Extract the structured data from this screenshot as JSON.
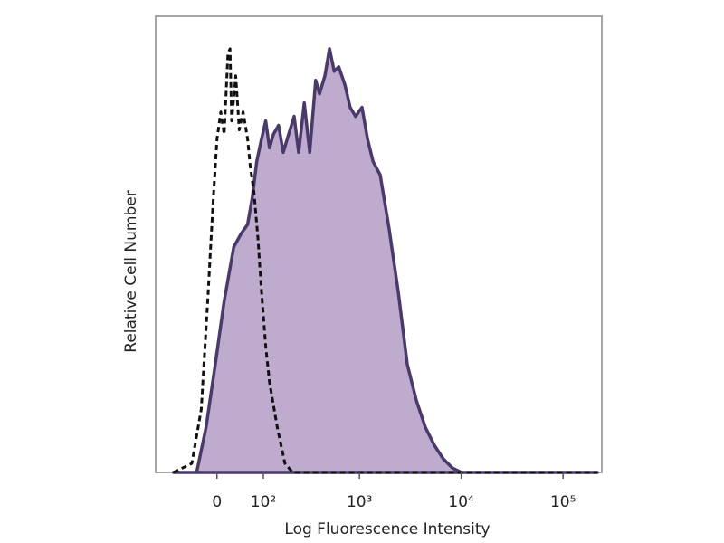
{
  "chart_data": {
    "type": "area",
    "xlabel": "Log Fluorescence Intensity",
    "ylabel": "Relative Cell Number",
    "xscale": "biexponential",
    "xlim": [
      -150,
      240000
    ],
    "xticks": [
      0,
      {
        "value": 100,
        "label": "10²"
      },
      {
        "value": 1000,
        "label": "10³"
      },
      {
        "value": 10000,
        "label": "10⁴"
      },
      {
        "value": 100000,
        "label": "10⁵"
      }
    ],
    "ylim": [
      0,
      100
    ],
    "series": [
      {
        "color": "#4a3a6c",
        "fill": "#b8a2c8",
        "dashed": false,
        "x": [
          -92,
          -38,
          -20,
          -3,
          13,
          31,
          46,
          60,
          71,
          82,
          95,
          107,
          119,
          132,
          151,
          170,
          194,
          222,
          247,
          282,
          320,
          368,
          402,
          455,
          506,
          563,
          624,
          718,
          810,
          916,
          1060,
          1200,
          1360,
          1600,
          1960,
          2410,
          2950,
          3620,
          4440,
          5450,
          6680,
          8180,
          10000,
          217000
        ],
        "values": [
          0,
          0,
          10,
          24,
          38,
          50,
          53,
          55,
          61,
          69,
          74,
          78,
          72,
          75,
          77,
          71,
          75,
          79,
          71,
          82,
          71,
          87,
          84,
          88,
          94,
          89,
          90,
          86,
          81,
          79,
          81,
          74,
          69,
          66,
          54,
          40,
          24,
          16,
          10,
          6,
          3,
          1,
          0,
          0
        ]
      },
      {
        "color": "#111111",
        "dashed": true,
        "x": [
          -92,
          -48,
          -29,
          -17,
          -7,
          0,
          7,
          13,
          20,
          24,
          27,
          35,
          42,
          50,
          60,
          66,
          75,
          85,
          95,
          107,
          119,
          146,
          177,
          214,
          217000
        ],
        "values": [
          0,
          2,
          14,
          38,
          60,
          74,
          80,
          75,
          93,
          94,
          78,
          88,
          76,
          80,
          74,
          68,
          62,
          52,
          40,
          28,
          20,
          10,
          2,
          0,
          0
        ]
      }
    ]
  }
}
